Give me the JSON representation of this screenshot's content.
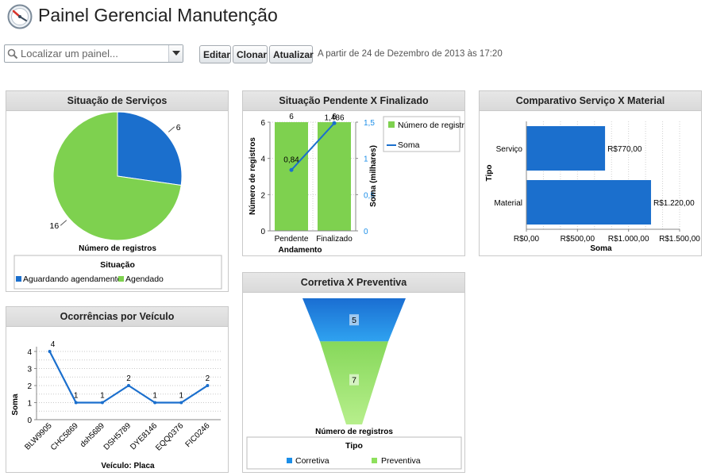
{
  "header": {
    "title": "Painel Gerencial Manutenção"
  },
  "toolbar": {
    "search_placeholder": "Localizar um painel...",
    "edit_label": "Editar",
    "clone_label": "Clonar",
    "refresh_label": "Atualizar",
    "as_of": "A partir de 24 de Dezembro de 2013 às 17:20"
  },
  "colors": {
    "blue": "#1b6fcd",
    "green": "#7ed14f",
    "line": "#1b6fcd"
  },
  "panels": {
    "situacao": {
      "title": "Situação de Serviços",
      "xlabel": "Número de registros",
      "legend_title": "Situação",
      "legend": [
        "Aguardando agendamento",
        "Agendado"
      ]
    },
    "pendente": {
      "title": "Situação Pendente X Finalizado",
      "ylabel": "Número de registros",
      "y2label": "Soma (milhares)",
      "xlabel": "Andamento",
      "legend": [
        "Número de registros",
        "Soma"
      ]
    },
    "comparativo": {
      "title": "Comparativo Serviço X Material",
      "ylabel": "Tipo",
      "xlabel": "Soma"
    },
    "ocorrencias": {
      "title": "Ocorrências por Veículo",
      "ylabel": "Soma",
      "xlabel": "Veículo: Placa"
    },
    "corretiva": {
      "title": "Corretiva X Preventiva",
      "xlabel": "Número de registros",
      "legend_title": "Tipo",
      "legend": [
        "Corretiva",
        "Preventiva"
      ]
    }
  },
  "chart_data": [
    {
      "type": "pie",
      "title": "Situação de Serviços",
      "categories": [
        "Aguardando agendamento",
        "Agendado"
      ],
      "values": [
        6,
        16
      ],
      "value_labels": [
        "6",
        "16"
      ]
    },
    {
      "type": "bar",
      "title": "Situação Pendente X Finalizado",
      "categories": [
        "Pendente",
        "Finalizado"
      ],
      "series": [
        {
          "name": "Número de registros",
          "type": "bar",
          "axis": "left",
          "values": [
            6,
            6
          ],
          "labels": [
            "6",
            "6"
          ]
        },
        {
          "name": "Soma",
          "type": "line",
          "axis": "right",
          "values": [
            0.84,
            1.486
          ],
          "labels": [
            "0,84",
            "1,486"
          ]
        }
      ],
      "ylim": [
        0,
        6
      ],
      "y_ticks": [
        "0",
        "2",
        "4",
        "6"
      ],
      "y2lim": [
        0,
        1.5
      ],
      "y2_ticks": [
        "0",
        "0,5",
        "1",
        "1,5"
      ]
    },
    {
      "type": "bar",
      "orientation": "horizontal",
      "title": "Comparativo Serviço X Material",
      "categories": [
        "Serviço",
        "Material"
      ],
      "values": [
        770,
        1220
      ],
      "labels": [
        "R$770,00",
        "R$1.220,00"
      ],
      "xlim": [
        0,
        1500
      ],
      "x_ticks": [
        "R$0,00",
        "R$500,00",
        "R$1.000,00",
        "R$1.500,00"
      ]
    },
    {
      "type": "line",
      "title": "Ocorrências por Veículo",
      "categories": [
        "BLW9905",
        "CHC5869",
        "dsh5689",
        "DSH5789",
        "DYE8146",
        "EQQ0376",
        "FIC0246"
      ],
      "values": [
        4,
        1,
        1,
        2,
        1,
        1,
        2
      ],
      "labels": [
        "4",
        "1",
        "1",
        "2",
        "1",
        "1",
        "2"
      ],
      "ylim": [
        0,
        4
      ],
      "y_ticks": [
        "0",
        "1",
        "2",
        "3",
        "4"
      ]
    },
    {
      "type": "funnel",
      "title": "Corretiva X Preventiva",
      "categories": [
        "Corretiva",
        "Preventiva"
      ],
      "values": [
        5,
        7
      ],
      "labels": [
        "5",
        "7"
      ]
    }
  ]
}
